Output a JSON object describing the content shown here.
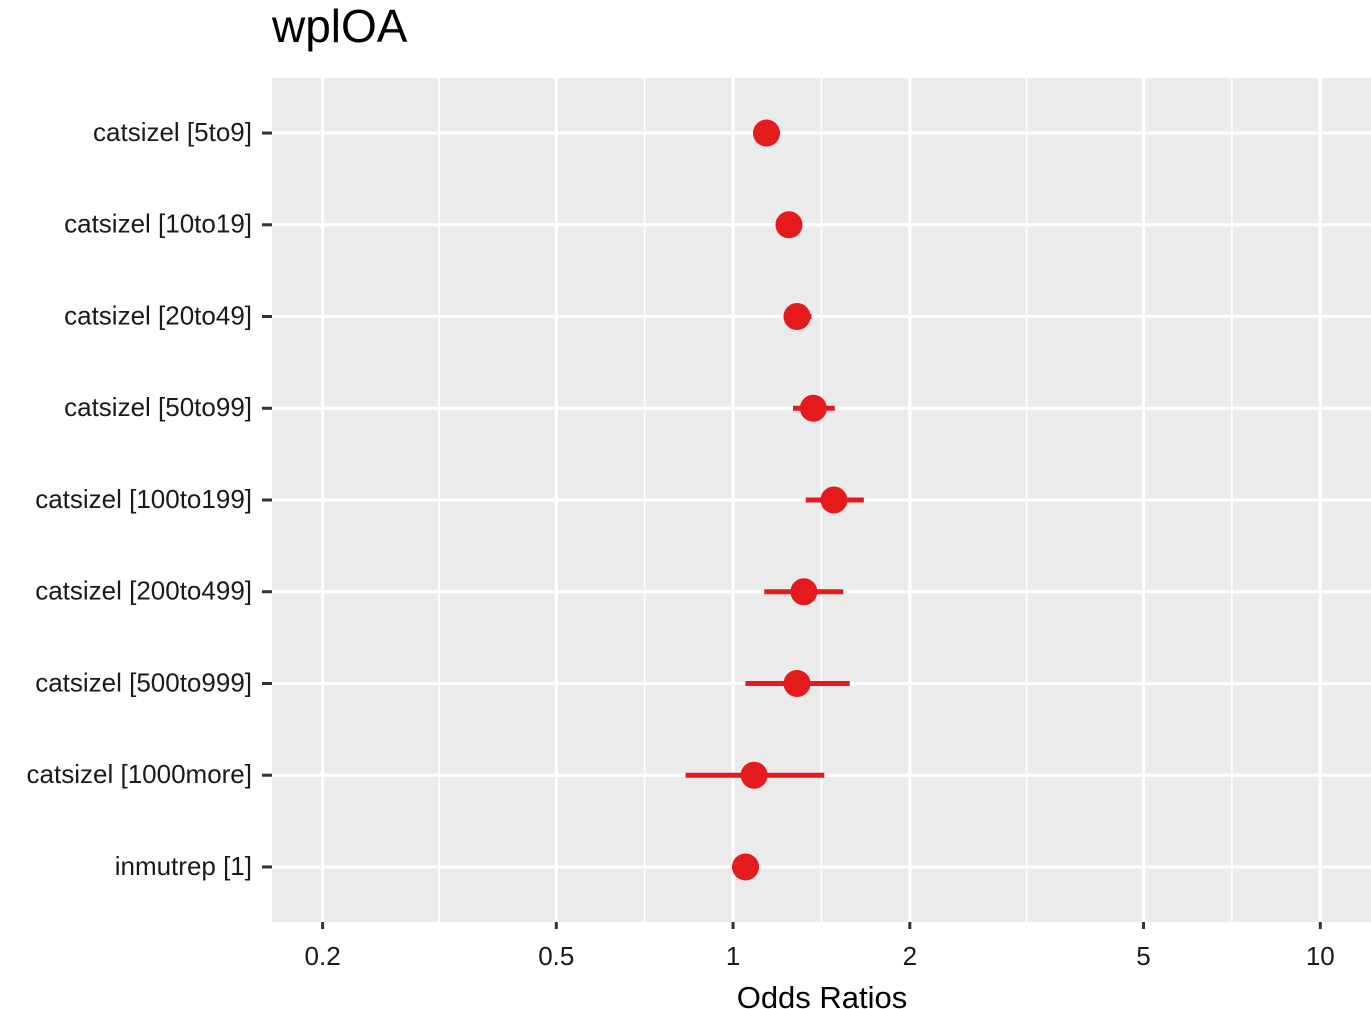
{
  "chart_data": {
    "type": "forest",
    "title": "wplOA",
    "xlabel": "Odds Ratios",
    "ylabel": "",
    "x_scale": "log10",
    "xlim": [
      0.164,
      12.2
    ],
    "x_major_ticks": [
      0.2,
      0.5,
      1,
      2,
      5,
      10
    ],
    "x_tick_labels": [
      "0.2",
      "0.5",
      "1",
      "2",
      "5",
      "10"
    ],
    "x_minor_gridlines": [
      0.316,
      0.707,
      1.414,
      3.162,
      7.071
    ],
    "grid": true,
    "color": "#e41a1c",
    "panel_background": "#ebebeb",
    "terms": [
      {
        "label": "catsizel [5to9]",
        "estimate": 1.14,
        "ci_low": 1.12,
        "ci_high": 1.16
      },
      {
        "label": "catsizel [10to19]",
        "estimate": 1.245,
        "ci_low": 1.22,
        "ci_high": 1.27
      },
      {
        "label": "catsizel [20to49]",
        "estimate": 1.285,
        "ci_low": 1.22,
        "ci_high": 1.36
      },
      {
        "label": "catsizel [50to99]",
        "estimate": 1.37,
        "ci_low": 1.265,
        "ci_high": 1.49
      },
      {
        "label": "catsizel [100to199]",
        "estimate": 1.485,
        "ci_low": 1.33,
        "ci_high": 1.67
      },
      {
        "label": "catsizel [200to499]",
        "estimate": 1.32,
        "ci_low": 1.13,
        "ci_high": 1.54
      },
      {
        "label": "catsizel [500to999]",
        "estimate": 1.285,
        "ci_low": 1.05,
        "ci_high": 1.58
      },
      {
        "label": "catsizel [1000more]",
        "estimate": 1.086,
        "ci_low": 0.83,
        "ci_high": 1.43
      },
      {
        "label": "inmutrep [1]",
        "estimate": 1.05,
        "ci_low": 1.03,
        "ci_high": 1.07
      }
    ]
  }
}
